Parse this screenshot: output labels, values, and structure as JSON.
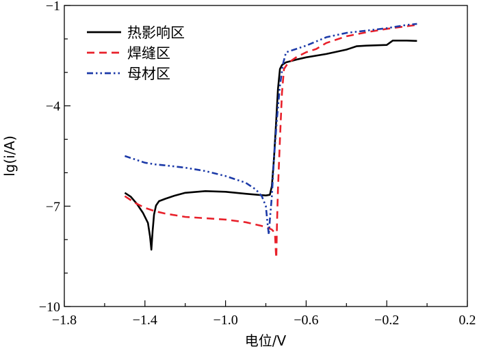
{
  "chart_data": {
    "type": "line",
    "title": "",
    "xlabel": "电位/V",
    "ylabel": "lg(i/A)",
    "xlim": [
      -1.8,
      0.2
    ],
    "ylim": [
      -10,
      -1
    ],
    "x_ticks": [
      -1.8,
      -1.4,
      -1.0,
      -0.6,
      -0.2,
      0.2
    ],
    "x_tick_labels": [
      "−1.8",
      "−1.4",
      "−1.0",
      "−0.6",
      "−0.2",
      "0.2"
    ],
    "y_ticks": [
      -10,
      -7,
      -4,
      -1
    ],
    "y_tick_labels": [
      "−10",
      "−7",
      "−4",
      "−1"
    ],
    "grid": false,
    "legend_position": "top-left",
    "series": [
      {
        "name": "热影响区",
        "color": "#000000",
        "dash": "solid",
        "points": [
          [
            -1.5,
            -6.6
          ],
          [
            -1.47,
            -6.72
          ],
          [
            -1.44,
            -6.93
          ],
          [
            -1.41,
            -7.2
          ],
          [
            -1.385,
            -7.5
          ],
          [
            -1.375,
            -7.9
          ],
          [
            -1.368,
            -8.3
          ],
          [
            -1.362,
            -7.75
          ],
          [
            -1.355,
            -7.25
          ],
          [
            -1.345,
            -6.98
          ],
          [
            -1.33,
            -6.85
          ],
          [
            -1.3,
            -6.78
          ],
          [
            -1.25,
            -6.68
          ],
          [
            -1.2,
            -6.6
          ],
          [
            -1.1,
            -6.55
          ],
          [
            -1.0,
            -6.57
          ],
          [
            -0.9,
            -6.63
          ],
          [
            -0.8,
            -6.68
          ],
          [
            -0.78,
            -6.66
          ],
          [
            -0.77,
            -6.4
          ],
          [
            -0.76,
            -5.6
          ],
          [
            -0.75,
            -4.6
          ],
          [
            -0.74,
            -3.5
          ],
          [
            -0.73,
            -2.9
          ],
          [
            -0.72,
            -2.78
          ],
          [
            -0.7,
            -2.7
          ],
          [
            -0.65,
            -2.62
          ],
          [
            -0.6,
            -2.55
          ],
          [
            -0.5,
            -2.45
          ],
          [
            -0.4,
            -2.32
          ],
          [
            -0.35,
            -2.22
          ],
          [
            -0.3,
            -2.2
          ],
          [
            -0.2,
            -2.18
          ],
          [
            -0.17,
            -2.05
          ],
          [
            -0.1,
            -2.05
          ],
          [
            -0.05,
            -2.06
          ]
        ]
      },
      {
        "name": "焊缝区",
        "color": "#e8202a",
        "dash": "dashed",
        "points": [
          [
            -1.5,
            -6.7
          ],
          [
            -1.45,
            -6.9
          ],
          [
            -1.4,
            -7.05
          ],
          [
            -1.35,
            -7.15
          ],
          [
            -1.3,
            -7.22
          ],
          [
            -1.2,
            -7.32
          ],
          [
            -1.0,
            -7.4
          ],
          [
            -0.9,
            -7.48
          ],
          [
            -0.8,
            -7.62
          ],
          [
            -0.77,
            -7.7
          ],
          [
            -0.755,
            -7.8
          ],
          [
            -0.75,
            -8.4
          ],
          [
            -0.748,
            -8.55
          ],
          [
            -0.745,
            -7.6
          ],
          [
            -0.74,
            -6.5
          ],
          [
            -0.73,
            -5.0
          ],
          [
            -0.72,
            -3.6
          ],
          [
            -0.71,
            -2.9
          ],
          [
            -0.69,
            -2.72
          ],
          [
            -0.65,
            -2.55
          ],
          [
            -0.6,
            -2.4
          ],
          [
            -0.55,
            -2.3
          ],
          [
            -0.5,
            -2.12
          ],
          [
            -0.4,
            -1.92
          ],
          [
            -0.3,
            -1.8
          ],
          [
            -0.2,
            -1.7
          ],
          [
            -0.1,
            -1.62
          ],
          [
            -0.05,
            -1.58
          ]
        ]
      },
      {
        "name": "母材区",
        "color": "#1c3aa8",
        "dash": "dash-dot-dot",
        "points": [
          [
            -1.5,
            -5.5
          ],
          [
            -1.45,
            -5.6
          ],
          [
            -1.4,
            -5.7
          ],
          [
            -1.35,
            -5.75
          ],
          [
            -1.3,
            -5.78
          ],
          [
            -1.2,
            -5.85
          ],
          [
            -1.1,
            -5.95
          ],
          [
            -1.0,
            -6.1
          ],
          [
            -0.9,
            -6.3
          ],
          [
            -0.85,
            -6.5
          ],
          [
            -0.82,
            -6.7
          ],
          [
            -0.8,
            -7.0
          ],
          [
            -0.79,
            -7.6
          ],
          [
            -0.785,
            -7.85
          ],
          [
            -0.78,
            -7.4
          ],
          [
            -0.77,
            -6.7
          ],
          [
            -0.76,
            -5.6
          ],
          [
            -0.745,
            -4.4
          ],
          [
            -0.73,
            -3.4
          ],
          [
            -0.715,
            -2.75
          ],
          [
            -0.7,
            -2.4
          ],
          [
            -0.65,
            -2.3
          ],
          [
            -0.6,
            -2.2
          ],
          [
            -0.5,
            -1.95
          ],
          [
            -0.4,
            -1.82
          ],
          [
            -0.3,
            -1.75
          ],
          [
            -0.2,
            -1.68
          ],
          [
            -0.1,
            -1.58
          ],
          [
            -0.05,
            -1.55
          ]
        ]
      }
    ]
  }
}
